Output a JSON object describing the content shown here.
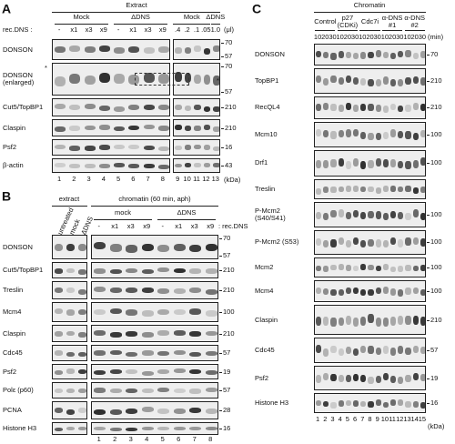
{
  "panels": [
    {
      "letter": "A",
      "header": "Extract",
      "rec_label": "rec.DNS :",
      "unit": "(μl)",
      "kda": "(kDa)",
      "groups": [
        {
          "label": "Mock",
          "lanes": [
            "-",
            "x1",
            "x3",
            "x9"
          ]
        },
        {
          "label": "ΔDNS",
          "lanes": [
            "-",
            "x1",
            "x3",
            "x9"
          ]
        },
        {
          "label": "Mock",
          "lanes": [
            ".4",
            ".2",
            ".1",
            ".05"
          ]
        },
        {
          "label": "ΔDNS",
          "lanes": [
            "1.0"
          ]
        }
      ],
      "rows": [
        {
          "label": "DONSON",
          "markers": [
            70,
            57
          ]
        },
        {
          "label": "DONSON (enlarged)",
          "markers": [
            70,
            57
          ],
          "asterisks": [
            "*",
            "*"
          ]
        },
        {
          "label": "Cut5/TopBP1",
          "markers": [
            210
          ]
        },
        {
          "label": "Claspin",
          "markers": [
            210
          ]
        },
        {
          "label": "Psf2",
          "markers": [
            16
          ]
        },
        {
          "label": "β-actin",
          "markers": [
            43
          ]
        }
      ],
      "lane_numbers": [
        1,
        2,
        3,
        4,
        5,
        6,
        7,
        8,
        9,
        10,
        11,
        12,
        13
      ]
    },
    {
      "letter": "B",
      "extract_header": "extract",
      "chromatin_header": "chromatin (60 min, aph)",
      "extract_lanes": [
        "untreated",
        "mock",
        "ΔDNS"
      ],
      "rec_label": ": rec.DNS",
      "groups": [
        {
          "label": "mock",
          "lanes": [
            "-",
            "x1",
            "x3",
            "x9"
          ]
        },
        {
          "label": "ΔDNS",
          "lanes": [
            "-",
            "x1",
            "x3",
            "x9"
          ]
        }
      ],
      "rows": [
        {
          "label": "DONSON",
          "markers": [
            70,
            57
          ]
        },
        {
          "label": "Cut5/TopBP1",
          "markers": [
            210
          ]
        },
        {
          "label": "Treslin",
          "markers": [
            210
          ]
        },
        {
          "label": "Mcm4",
          "markers": [
            100
          ]
        },
        {
          "label": "Claspin",
          "markers": [
            210
          ]
        },
        {
          "label": "Cdc45",
          "markers": [
            57
          ]
        },
        {
          "label": "Psf2",
          "markers": [
            19
          ]
        },
        {
          "label": "Polε (p60)",
          "markers": [
            57
          ]
        },
        {
          "label": "PCNA",
          "markers": [
            28
          ]
        },
        {
          "label": "Histone H3",
          "markers": [
            16
          ]
        }
      ],
      "lane_numbers": [
        1,
        2,
        3,
        4,
        5,
        6,
        7,
        8
      ]
    },
    {
      "letter": "C",
      "header": "Chromatin",
      "unit": "(min)",
      "kda": "(kDa)",
      "groups": [
        {
          "label": "Control",
          "times": [
            10,
            20,
            30
          ]
        },
        {
          "label": "p27 (CDKi)",
          "times": [
            10,
            20,
            30
          ]
        },
        {
          "label": "Cdc7i",
          "times": [
            10,
            20,
            30
          ]
        },
        {
          "label": "α-DNS #1",
          "times": [
            10,
            20,
            30
          ]
        },
        {
          "label": "α-DNS #2",
          "times": [
            10,
            20,
            30
          ]
        }
      ],
      "rows": [
        {
          "label": "DONSON",
          "markers": [
            70
          ]
        },
        {
          "label": "TopBP1",
          "markers": [
            210
          ]
        },
        {
          "label": "RecQL4",
          "markers": [
            210
          ]
        },
        {
          "label": "Mcm10",
          "markers": [
            100
          ]
        },
        {
          "label": "Drf1",
          "markers": [
            100
          ]
        },
        {
          "label": "Treslin",
          "markers": []
        },
        {
          "label": "P-Mcm2 (S40/S41)",
          "markers": [
            100
          ]
        },
        {
          "label": "P-Mcm2 (S53)",
          "markers": [
            100
          ]
        },
        {
          "label": "Mcm2",
          "markers": [
            100
          ]
        },
        {
          "label": "Mcm4",
          "markers": [
            100
          ]
        },
        {
          "label": "Claspin",
          "markers": [
            210
          ]
        },
        {
          "label": "Cdc45",
          "markers": [
            57
          ]
        },
        {
          "label": "Psf2",
          "markers": [
            19
          ]
        },
        {
          "label": "Histone H3",
          "markers": [
            16
          ]
        }
      ],
      "lane_numbers": [
        1,
        2,
        3,
        4,
        5,
        6,
        7,
        8,
        9,
        10,
        11,
        12,
        13,
        14,
        15
      ]
    }
  ]
}
